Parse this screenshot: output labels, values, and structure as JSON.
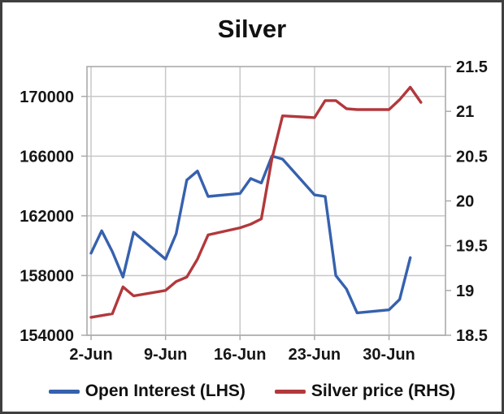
{
  "chart_data": {
    "type": "line",
    "title": "Silver",
    "grid": true,
    "legend_position": "bottom",
    "x_axis": {
      "tick_labels": [
        "2-Jun",
        "9-Jun",
        "16-Jun",
        "23-Jun",
        "30-Jun"
      ],
      "tick_days": [
        0,
        7,
        14,
        21,
        28
      ],
      "min_day": 0,
      "max_day": 33
    },
    "y_left": {
      "min": 154000,
      "max": 172000,
      "tick_values": [
        154000,
        158000,
        162000,
        166000,
        170000
      ],
      "tick_labels": [
        "154000",
        "158000",
        "162000",
        "166000",
        "170000"
      ]
    },
    "y_right": {
      "min": 18.5,
      "max": 21.5,
      "tick_values": [
        18.5,
        19,
        19.5,
        20,
        20.5,
        21,
        21.5
      ],
      "tick_labels": [
        "18.5",
        "19",
        "19.5",
        "20",
        "20.5",
        "21",
        "21.5"
      ]
    },
    "series": [
      {
        "name": "Open Interest (LHS)",
        "axis": "left",
        "color": "#3661AE",
        "points": [
          [
            0,
            159500
          ],
          [
            1,
            161000
          ],
          [
            2,
            159600
          ],
          [
            3,
            157900
          ],
          [
            4,
            160900
          ],
          [
            7,
            159100
          ],
          [
            8,
            160800
          ],
          [
            9,
            164400
          ],
          [
            10,
            165000
          ],
          [
            11,
            163300
          ],
          [
            14,
            163500
          ],
          [
            15,
            164500
          ],
          [
            16,
            164200
          ],
          [
            17,
            166000
          ],
          [
            18,
            165800
          ],
          [
            21,
            163400
          ],
          [
            22,
            163300
          ],
          [
            23,
            158000
          ],
          [
            24,
            157100
          ],
          [
            25,
            155500
          ],
          [
            28,
            155700
          ],
          [
            29,
            156400
          ],
          [
            30,
            159200
          ]
        ]
      },
      {
        "name": "Silver price (RHS)",
        "axis": "right",
        "color": "#B2383C",
        "points": [
          [
            0,
            18.7
          ],
          [
            1,
            18.72
          ],
          [
            2,
            18.74
          ],
          [
            3,
            19.04
          ],
          [
            4,
            18.94
          ],
          [
            7,
            19.0
          ],
          [
            8,
            19.1
          ],
          [
            9,
            19.15
          ],
          [
            10,
            19.35
          ],
          [
            11,
            19.62
          ],
          [
            14,
            19.7
          ],
          [
            15,
            19.74
          ],
          [
            16,
            19.8
          ],
          [
            17,
            20.47
          ],
          [
            18,
            20.95
          ],
          [
            21,
            20.93
          ],
          [
            22,
            21.12
          ],
          [
            23,
            21.12
          ],
          [
            24,
            21.03
          ],
          [
            25,
            21.02
          ],
          [
            28,
            21.02
          ],
          [
            29,
            21.13
          ],
          [
            30,
            21.27
          ],
          [
            31,
            21.1
          ]
        ]
      }
    ]
  }
}
